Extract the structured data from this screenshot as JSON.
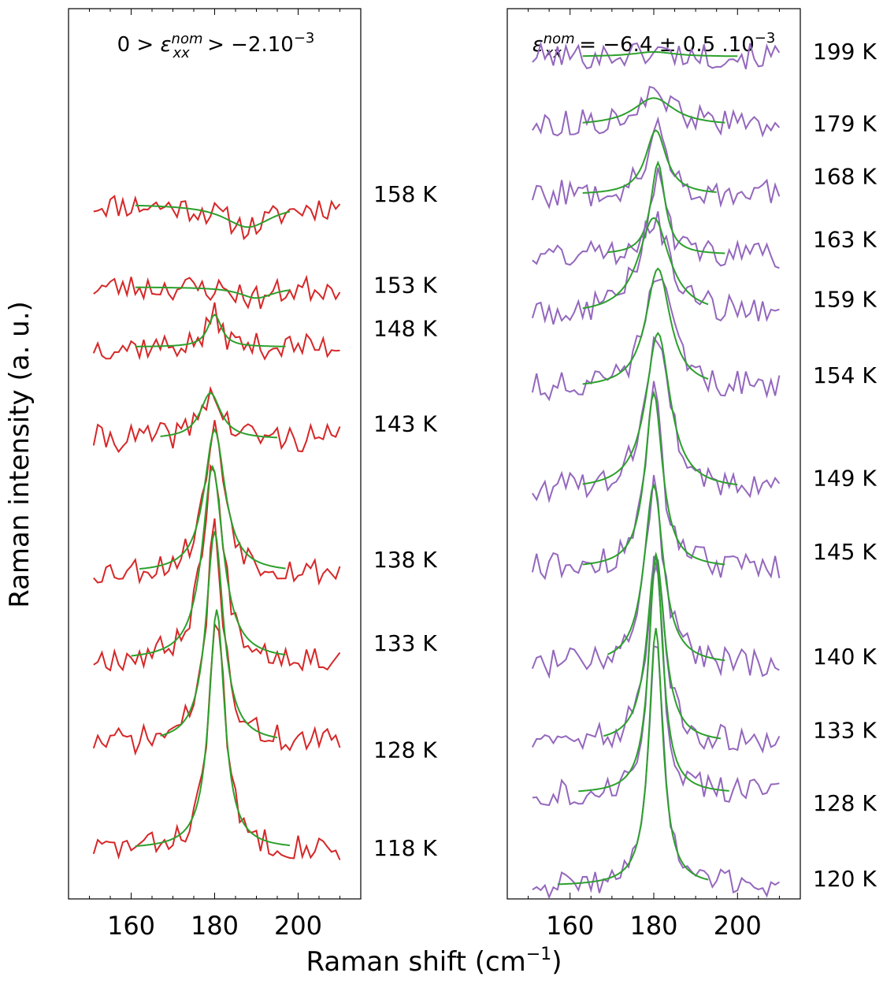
{
  "chart_data": [
    {
      "type": "line",
      "panel": "left",
      "title": "0 > ε_xx^nom > −2.10^−3",
      "title_parts": {
        "pre": "0 > ",
        "symbol": "ε",
        "sub": "xx",
        "sup": "nom",
        "post": " > −2.10",
        "exp": "−3"
      },
      "xlabel": "Raman shift (cm⁻¹)",
      "ylabel": "Raman intensity (a. u.)",
      "xlim": [
        145,
        215
      ],
      "xticks": [
        160,
        180,
        200
      ],
      "xtick_labels": [
        "160",
        "180",
        "200"
      ],
      "data_color": "#d62728",
      "fit_color": "#2ca02c",
      "x_range": [
        151,
        210
      ],
      "series": [
        {
          "label": "158 K",
          "offset": 7.0,
          "amp": -0.25,
          "center": 188,
          "width": 14,
          "fit_range": [
            161,
            198
          ],
          "noise": 0.28,
          "seed": 11
        },
        {
          "label": "153 K",
          "offset": 6.1,
          "amp": -0.12,
          "center": 190,
          "width": 10,
          "fit_range": [
            161,
            198
          ],
          "noise": 0.28,
          "seed": 23
        },
        {
          "label": "148 K",
          "offset": 5.45,
          "amp": 0.35,
          "center": 180,
          "width": 4,
          "fit_range": [
            161,
            197
          ],
          "noise": 0.28,
          "seed": 37
        },
        {
          "label": "143 K",
          "offset": 4.45,
          "amp": 0.5,
          "center": 179,
          "width": 6,
          "fit_range": [
            167,
            195
          ],
          "noise": 0.3,
          "seed": 41
        },
        {
          "label": "138 K",
          "offset": 3.0,
          "amp": 1.55,
          "center": 180,
          "width": 6,
          "fit_range": [
            162,
            197
          ],
          "noise": 0.3,
          "seed": 53
        },
        {
          "label": "133 K",
          "offset": 2.05,
          "amp": 2.1,
          "center": 179.5,
          "width": 6,
          "fit_range": [
            160,
            197
          ],
          "noise": 0.3,
          "seed": 67
        },
        {
          "label": "128 K",
          "offset": 1.15,
          "amp": 2.3,
          "center": 180,
          "width": 5,
          "fit_range": [
            167,
            195
          ],
          "noise": 0.3,
          "seed": 71
        },
        {
          "label": "118 K",
          "offset": 0.0,
          "amp": 2.6,
          "center": 180.5,
          "width": 4.5,
          "fit_range": [
            161,
            198
          ],
          "noise": 0.28,
          "seed": 83
        }
      ]
    },
    {
      "type": "line",
      "panel": "right",
      "title": "ε_xx^nom = −6.4 ± 0.5 .10^−3",
      "title_parts": {
        "pre": "",
        "symbol": "ε",
        "sub": "xx",
        "sup": "nom",
        "post": " = −6.4 ± 0.5 .10",
        "exp": "−3"
      },
      "xlabel": "Raman shift (cm⁻¹)",
      "xlim": [
        145,
        215
      ],
      "xticks": [
        160,
        180,
        200
      ],
      "xtick_labels": [
        "160",
        "180",
        "200"
      ],
      "data_color": "#9467bd",
      "fit_color": "#2ca02c",
      "x_range": [
        151,
        210
      ],
      "series": [
        {
          "label": "199 K",
          "offset": 8.6,
          "amp": 0.05,
          "center": 180,
          "width": 12,
          "fit_range": [
            163,
            200
          ],
          "noise": 0.28,
          "seed": 101
        },
        {
          "label": "179 K",
          "offset": 7.85,
          "amp": 0.3,
          "center": 180,
          "width": 12,
          "fit_range": [
            163,
            197
          ],
          "noise": 0.28,
          "seed": 113
        },
        {
          "label": "168 K",
          "offset": 7.1,
          "amp": 0.7,
          "center": 180.5,
          "width": 6,
          "fit_range": [
            163,
            195
          ],
          "noise": 0.3,
          "seed": 127
        },
        {
          "label": "163 K",
          "offset": 6.45,
          "amp": 1.0,
          "center": 181,
          "width": 4,
          "fit_range": [
            169,
            197
          ],
          "noise": 0.3,
          "seed": 131
        },
        {
          "label": "159 K",
          "offset": 5.8,
          "amp": 1.05,
          "center": 180,
          "width": 9,
          "fit_range": [
            163,
            193
          ],
          "noise": 0.3,
          "seed": 149
        },
        {
          "label": "154 K",
          "offset": 5.0,
          "amp": 1.3,
          "center": 181,
          "width": 7,
          "fit_range": [
            163,
            193
          ],
          "noise": 0.3,
          "seed": 151
        },
        {
          "label": "149 K",
          "offset": 3.9,
          "amp": 1.7,
          "center": 181,
          "width": 7,
          "fit_range": [
            163,
            200
          ],
          "noise": 0.3,
          "seed": 163
        },
        {
          "label": "145 K",
          "offset": 3.05,
          "amp": 1.9,
          "center": 180,
          "width": 5,
          "fit_range": [
            163,
            197
          ],
          "noise": 0.3,
          "seed": 173
        },
        {
          "label": "140 K",
          "offset": 2.0,
          "amp": 1.95,
          "center": 180,
          "width": 5.5,
          "fit_range": [
            169,
            197
          ],
          "noise": 0.3,
          "seed": 181
        },
        {
          "label": "133 K",
          "offset": 1.15,
          "amp": 2.05,
          "center": 180.5,
          "width": 5,
          "fit_range": [
            168,
            196
          ],
          "noise": 0.3,
          "seed": 191
        },
        {
          "label": "128 K",
          "offset": 0.6,
          "amp": 2.6,
          "center": 180.5,
          "width": 4,
          "fit_range": [
            162,
            198
          ],
          "noise": 0.28,
          "seed": 199
        },
        {
          "label": "120 K",
          "offset": -0.4,
          "amp": 2.8,
          "center": 180.5,
          "width": 4,
          "fit_range": [
            157,
            193
          ],
          "noise": 0.28,
          "seed": 211
        }
      ]
    }
  ],
  "figure": {
    "xlabel": "Raman shift (cm⁻¹)",
    "ylabel": "Raman intensity (a. u.)"
  }
}
